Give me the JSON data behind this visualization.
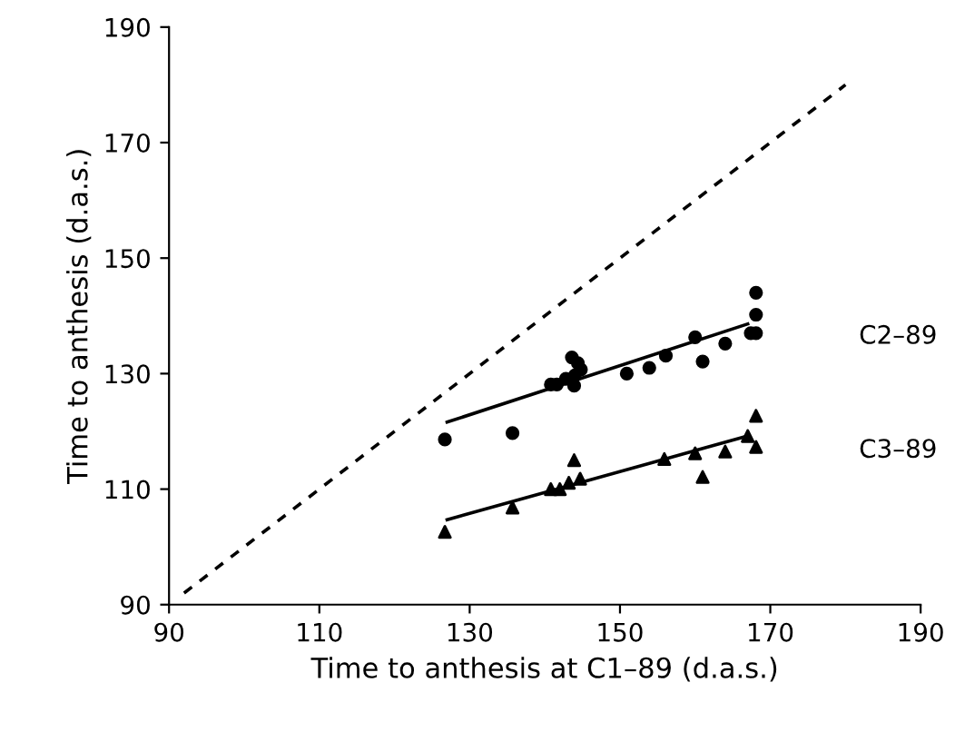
{
  "chart_data": {
    "type": "scatter",
    "xlabel": "Time to anthesis at C1–89 (d.a.s.)",
    "ylabel": "Time to anthesis (d.a.s.)",
    "xlim": [
      90,
      190
    ],
    "ylim": [
      90,
      190
    ],
    "xticks": [
      90,
      110,
      130,
      150,
      170,
      190
    ],
    "yticks": [
      90,
      110,
      130,
      150,
      170,
      190
    ],
    "grid": false,
    "legend": false,
    "series": [
      {
        "name": "C2–89",
        "marker": "circle",
        "color": "#000000",
        "x": [
          126.7,
          135.7,
          140.8,
          141.6,
          142.8,
          143.6,
          143.9,
          144.4,
          144.8,
          144.0,
          150.9,
          153.9,
          156.1,
          160.0,
          161.0,
          164.0,
          167.4,
          168.1,
          168.1,
          168.1
        ],
        "values": [
          118.6,
          119.7,
          128.1,
          128.1,
          129.1,
          132.8,
          127.9,
          131.8,
          130.7,
          129.7,
          130.0,
          131.0,
          133.1,
          136.3,
          132.1,
          135.2,
          137.0,
          144.0,
          140.2,
          137.0
        ]
      },
      {
        "type": "line",
        "marker": "none",
        "line_style": "solid",
        "color": "#000000",
        "x": [
          127,
          167
        ],
        "values": [
          121.6,
          138.6
        ]
      },
      {
        "name": "C3–89",
        "marker": "triangle",
        "color": "#000000",
        "x": [
          126.7,
          135.7,
          140.8,
          142.0,
          143.9,
          143.2,
          144.7,
          155.9,
          160.0,
          161.0,
          164.0,
          167.0,
          168.1,
          168.1
        ],
        "values": [
          102.6,
          106.8,
          110.0,
          110.0,
          115.0,
          111.1,
          111.8,
          115.2,
          116.2,
          112.1,
          116.5,
          119.2,
          122.7,
          117.3
        ]
      },
      {
        "type": "line",
        "marker": "none",
        "line_style": "solid",
        "color": "#000000",
        "x": [
          127,
          167
        ],
        "values": [
          104.7,
          119.2
        ]
      },
      {
        "type": "line",
        "marker": "none",
        "line_style": "dashed",
        "color": "#000000",
        "x": [
          92,
          180
        ],
        "values": [
          92,
          180
        ]
      }
    ]
  }
}
